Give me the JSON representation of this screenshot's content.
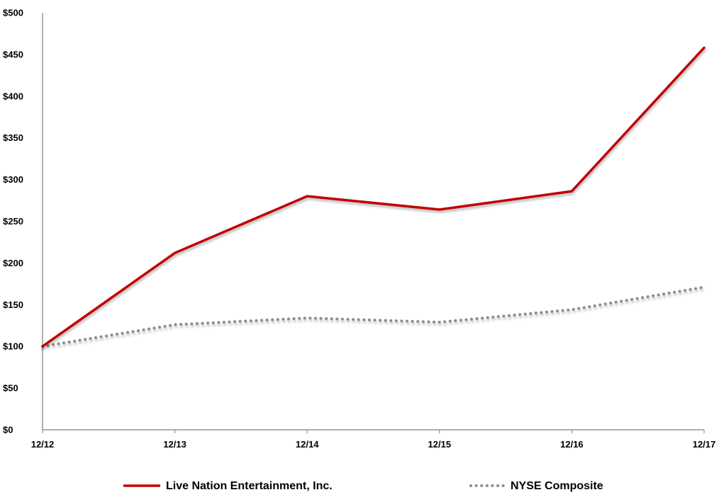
{
  "chart_data": {
    "type": "line",
    "title": "",
    "xlabel": "",
    "ylabel": "",
    "categories": [
      "12/12",
      "12/13",
      "12/14",
      "12/15",
      "12/16",
      "12/17"
    ],
    "y_ticks": [
      "$0",
      "$50",
      "$100",
      "$150",
      "$200",
      "$250",
      "$300",
      "$350",
      "$400",
      "$450",
      "$500"
    ],
    "ylim": [
      0,
      500
    ],
    "grid": false,
    "legend_position": "bottom",
    "series": [
      {
        "name": "Live Nation Entertainment, Inc.",
        "values": [
          100,
          212,
          280,
          264,
          286,
          458
        ],
        "color": "#c00000",
        "style": "solid"
      },
      {
        "name": "NYSE Composite",
        "values": [
          100,
          126,
          134,
          129,
          144,
          171
        ],
        "color": "#8c8c8c",
        "style": "dotted"
      }
    ]
  }
}
